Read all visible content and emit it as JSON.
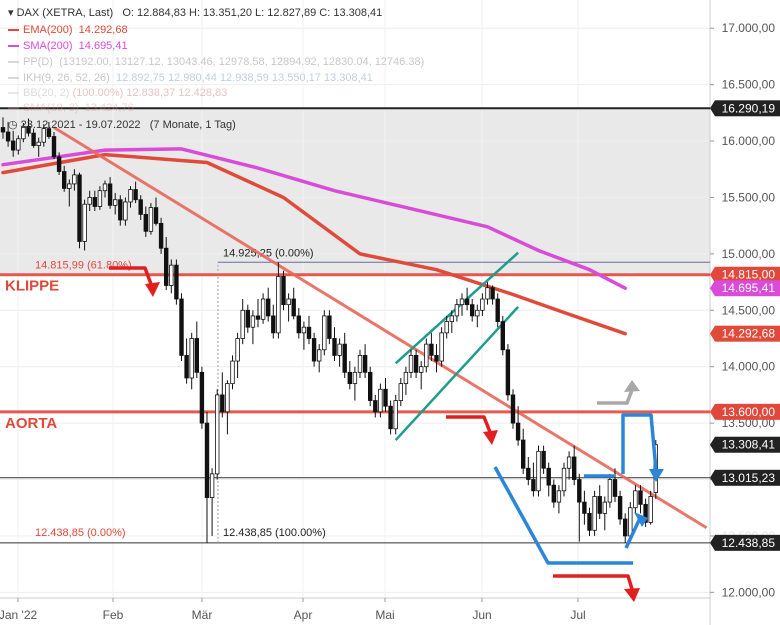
{
  "header": {
    "title": "DAX (XETRA, Last)",
    "ohlc": "O: 12.884,83  H: 13.351,20  L: 12.827,89  C: 13.308,41",
    "indicators": [
      {
        "label": "EMA(200)",
        "value": "14.292,68",
        "color": "#e04a3a"
      },
      {
        "label": "SMA(200)",
        "value": "14.695,41",
        "color": "#d94cd9"
      },
      {
        "label": "PP(D)",
        "value": "(13192.00, 13127.12, 13043.46, 12978.58, 12894.92, 12830.04, 12746.38)",
        "color": "#bbbbbb"
      },
      {
        "label": "IKH(9, 26, 52, 26)",
        "value": "12.892,75  12.980,44  12.938,59  13.550,17  13.308,41",
        "color": "#bbbbbb"
      },
      {
        "label": "BB(20, 2)",
        "value": "(100.00%)  12.838,37  12.428,83",
        "color": "#bbbbbb"
      },
      {
        "label": "SMA(10, 3)",
        "value": "13.424,76",
        "color": "#e88080"
      }
    ],
    "range": "23.12.2021 - 19.07.2022",
    "period": "(7 Monate, 1 Tag)"
  },
  "chart_data": {
    "type": "candlestick",
    "x_labels": [
      "Jan '22",
      "Feb",
      "Mär",
      "Apr",
      "Mai",
      "Jun",
      "Jul"
    ],
    "y_ticks": [
      "17.000,00",
      "16.500,00",
      "16.000,00",
      "15.500,00",
      "15.000,00",
      "14.500,00",
      "14.000,00",
      "13.500,00",
      "13.000,00",
      "12.500,00",
      "12.000,00"
    ],
    "ylim": [
      11950,
      17250
    ],
    "candles": [
      [
        16120,
        16210,
        16020,
        16080
      ],
      [
        16080,
        16170,
        15950,
        16000
      ],
      [
        16000,
        16090,
        15860,
        15920
      ],
      [
        15920,
        16050,
        15880,
        16020
      ],
      [
        16020,
        16160,
        15990,
        16130
      ],
      [
        16130,
        16200,
        16040,
        16070
      ],
      [
        16070,
        16110,
        15940,
        15960
      ],
      [
        15960,
        16030,
        15860,
        15990
      ],
      [
        15990,
        16150,
        15950,
        16110
      ],
      [
        16110,
        16170,
        16020,
        16040
      ],
      [
        16040,
        16080,
        15840,
        15860
      ],
      [
        15860,
        15900,
        15700,
        15730
      ],
      [
        15730,
        15780,
        15550,
        15580
      ],
      [
        15580,
        15660,
        15420,
        15620
      ],
      [
        15620,
        15750,
        15560,
        15700
      ],
      [
        15700,
        15720,
        15050,
        15110
      ],
      [
        15110,
        15480,
        15030,
        15440
      ],
      [
        15440,
        15560,
        15380,
        15500
      ],
      [
        15500,
        15560,
        15380,
        15420
      ],
      [
        15420,
        15600,
        15390,
        15560
      ],
      [
        15560,
        15650,
        15500,
        15620
      ],
      [
        15620,
        15680,
        15400,
        15430
      ],
      [
        15430,
        15540,
        15350,
        15480
      ],
      [
        15480,
        15520,
        15250,
        15300
      ],
      [
        15300,
        15500,
        15250,
        15460
      ],
      [
        15460,
        15600,
        15410,
        15570
      ],
      [
        15570,
        15640,
        15450,
        15480
      ],
      [
        15480,
        15520,
        15300,
        15350
      ],
      [
        15350,
        15420,
        15150,
        15200
      ],
      [
        15200,
        15450,
        15170,
        15410
      ],
      [
        15410,
        15500,
        15250,
        15270
      ],
      [
        15270,
        15320,
        15000,
        15050
      ],
      [
        15050,
        15150,
        14680,
        14720
      ],
      [
        14720,
        14950,
        14650,
        14900
      ],
      [
        14900,
        14950,
        14550,
        14600
      ],
      [
        14600,
        14650,
        14050,
        14100
      ],
      [
        14100,
        14250,
        13850,
        13900
      ],
      [
        13900,
        14300,
        13800,
        14250
      ],
      [
        14250,
        14400,
        13900,
        13950
      ],
      [
        13950,
        14000,
        13450,
        13500
      ],
      [
        13500,
        13600,
        12438,
        12840
      ],
      [
        12840,
        13100,
        12500,
        13050
      ],
      [
        13050,
        13800,
        13000,
        13750
      ],
      [
        13750,
        13950,
        13550,
        13600
      ],
      [
        13600,
        13880,
        13400,
        13850
      ],
      [
        13850,
        14100,
        13800,
        14050
      ],
      [
        14050,
        14300,
        13900,
        14250
      ],
      [
        14250,
        14600,
        14200,
        14500
      ],
      [
        14500,
        14550,
        14300,
        14350
      ],
      [
        14350,
        14500,
        14200,
        14450
      ],
      [
        14450,
        14600,
        14350,
        14420
      ],
      [
        14420,
        14650,
        14380,
        14600
      ],
      [
        14600,
        14700,
        14400,
        14450
      ],
      [
        14450,
        14550,
        14250,
        14300
      ],
      [
        14300,
        14925,
        14250,
        14800
      ],
      [
        14800,
        14850,
        14500,
        14550
      ],
      [
        14550,
        14650,
        14400,
        14600
      ],
      [
        14600,
        14700,
        14420,
        14450
      ],
      [
        14450,
        14520,
        14250,
        14300
      ],
      [
        14300,
        14400,
        14150,
        14350
      ],
      [
        14350,
        14450,
        14200,
        14250
      ],
      [
        14250,
        14300,
        14000,
        14050
      ],
      [
        14050,
        14200,
        13950,
        14150
      ],
      [
        14150,
        14500,
        14100,
        14450
      ],
      [
        14450,
        14500,
        14200,
        14250
      ],
      [
        14250,
        14350,
        14050,
        14100
      ],
      [
        14100,
        14250,
        14000,
        14200
      ],
      [
        14200,
        14300,
        13900,
        13950
      ],
      [
        13950,
        14050,
        13800,
        13850
      ],
      [
        13850,
        14000,
        13700,
        13950
      ],
      [
        13950,
        14150,
        13900,
        14100
      ],
      [
        14100,
        14200,
        13900,
        13950
      ],
      [
        13950,
        14000,
        13650,
        13700
      ],
      [
        13700,
        13750,
        13550,
        13600
      ],
      [
        13600,
        13850,
        13550,
        13800
      ],
      [
        13800,
        13900,
        13600,
        13650
      ],
      [
        13650,
        13700,
        13400,
        13450
      ],
      [
        13450,
        13750,
        13400,
        13700
      ],
      [
        13700,
        13900,
        13650,
        13850
      ],
      [
        13850,
        14000,
        13750,
        13950
      ],
      [
        13950,
        14150,
        13900,
        14100
      ],
      [
        14100,
        14150,
        13900,
        13950
      ],
      [
        13950,
        14050,
        13800,
        14000
      ],
      [
        14000,
        14250,
        13950,
        14200
      ],
      [
        14200,
        14300,
        14050,
        14100
      ],
      [
        14100,
        14200,
        13950,
        14050
      ],
      [
        14050,
        14350,
        14000,
        14300
      ],
      [
        14300,
        14450,
        14250,
        14400
      ],
      [
        14400,
        14500,
        14300,
        14450
      ],
      [
        14450,
        14600,
        14400,
        14550
      ],
      [
        14550,
        14650,
        14450,
        14600
      ],
      [
        14600,
        14700,
        14500,
        14550
      ],
      [
        14550,
        14600,
        14400,
        14450
      ],
      [
        14450,
        14550,
        14350,
        14500
      ],
      [
        14500,
        14650,
        14450,
        14600
      ],
      [
        14600,
        14750,
        14550,
        14700
      ],
      [
        14700,
        14720,
        14550,
        14600
      ],
      [
        14600,
        14650,
        14350,
        14400
      ],
      [
        14400,
        14450,
        14100,
        14150
      ],
      [
        14150,
        14200,
        13700,
        13750
      ],
      [
        13750,
        13800,
        13450,
        13500
      ],
      [
        13500,
        13650,
        13300,
        13350
      ],
      [
        13350,
        13450,
        13050,
        13100
      ],
      [
        13100,
        13200,
        12950,
        13000
      ],
      [
        13000,
        13150,
        12850,
        12900
      ],
      [
        12900,
        13300,
        12850,
        13250
      ],
      [
        13250,
        13300,
        13050,
        13100
      ],
      [
        13100,
        13150,
        12850,
        12950
      ],
      [
        12950,
        13000,
        12750,
        12800
      ],
      [
        12800,
        12950,
        12700,
        12900
      ],
      [
        12900,
        13150,
        12850,
        13100
      ],
      [
        13100,
        13250,
        13000,
        13200
      ],
      [
        13200,
        13300,
        12950,
        13000
      ],
      [
        13000,
        13050,
        12450,
        12800
      ],
      [
        12800,
        12900,
        12600,
        12700
      ],
      [
        12700,
        12750,
        12500,
        12550
      ],
      [
        12550,
        12900,
        12500,
        12850
      ],
      [
        12850,
        12950,
        12650,
        12700
      ],
      [
        12700,
        12850,
        12550,
        12800
      ],
      [
        12800,
        13050,
        12750,
        13000
      ],
      [
        13000,
        13100,
        12800,
        12850
      ],
      [
        12850,
        12900,
        12600,
        12650
      ],
      [
        12650,
        12700,
        12440,
        12500
      ],
      [
        12500,
        12800,
        12450,
        12750
      ],
      [
        12750,
        12950,
        12700,
        12900
      ],
      [
        12900,
        12950,
        12700,
        12780
      ],
      [
        12780,
        12830,
        12580,
        12620
      ],
      [
        12620,
        12900,
        12600,
        12850
      ],
      [
        12884.83,
        13351.2,
        12827.89,
        13308.41
      ]
    ],
    "overlays": [
      {
        "name": "EMA(200)",
        "color": "#e04a3a",
        "points": [
          [
            0,
            15720
          ],
          [
            20,
            15880
          ],
          [
            40,
            15810
          ],
          [
            55,
            15500
          ],
          [
            70,
            15000
          ],
          [
            85,
            14860
          ],
          [
            100,
            14640
          ],
          [
            110,
            14480
          ],
          [
            122,
            14292.68
          ]
        ]
      },
      {
        "name": "SMA(200)",
        "color": "#d94cd9",
        "points": [
          [
            0,
            15790
          ],
          [
            20,
            15920
          ],
          [
            35,
            15930
          ],
          [
            50,
            15760
          ],
          [
            65,
            15560
          ],
          [
            80,
            15400
          ],
          [
            95,
            15240
          ],
          [
            105,
            15030
          ],
          [
            115,
            14860
          ],
          [
            122,
            14695.41
          ]
        ]
      }
    ],
    "trendline": {
      "points": [
        [
          10,
          16120
        ],
        [
          135,
          12750
        ]
      ],
      "color": "#e8675a"
    },
    "channel": {
      "lower": [
        [
          77,
          13350
        ],
        [
          101,
          14530
        ]
      ],
      "upper": [
        [
          77,
          14030
        ],
        [
          101,
          15010
        ]
      ],
      "color": "#1e9d8a"
    },
    "levels": [
      {
        "label": "KLIPPE",
        "value": 14815,
        "color": "#e0483c",
        "tag": "14.815,00",
        "fib": "14.815,99 (61.80%)"
      },
      {
        "label": "AORTA",
        "value": 13600,
        "color": "#e0483c",
        "tag": "13.600,00"
      }
    ],
    "thin_lines": [
      {
        "value": 16290.19,
        "tag": "16.290,19",
        "color": "#222222"
      },
      {
        "value": 14925.25,
        "note": "14.925,25 (0.00%)",
        "color": "#6a6aa0"
      },
      {
        "value": 13015.23,
        "tag": "13.015,23",
        "color": "#333333"
      },
      {
        "value": 12438.85,
        "tag": "12.438,85",
        "note": "12.438,85 (100.00%)",
        "fib": "12.438,85 (0.00%)",
        "color": "#333333"
      }
    ],
    "price_tags": [
      {
        "text": "16.290,19",
        "value": 16290.19,
        "bg": "#222222",
        "fg": "#ffffff"
      },
      {
        "text": "14.815,00",
        "value": 14815,
        "bg": "#e0483c",
        "fg": "#ffffff"
      },
      {
        "text": "14.695,41",
        "value": 14695.41,
        "bg": "#d94cd9",
        "fg": "#ffffff"
      },
      {
        "text": "14.292,68",
        "value": 14292.68,
        "bg": "#e04a3a",
        "fg": "#ffffff"
      },
      {
        "text": "13.600,00",
        "value": 13600,
        "bg": "#e0483c",
        "fg": "#ffffff"
      },
      {
        "text": "13.308,41",
        "value": 13308.41,
        "bg": "#222222",
        "fg": "#ffffff"
      },
      {
        "text": "13.015,23",
        "value": 13015.23,
        "bg": "#222222",
        "fg": "#ffffff"
      },
      {
        "text": "12.438,85",
        "value": 12438.85,
        "bg": "#222222",
        "fg": "#ffffff"
      }
    ]
  }
}
